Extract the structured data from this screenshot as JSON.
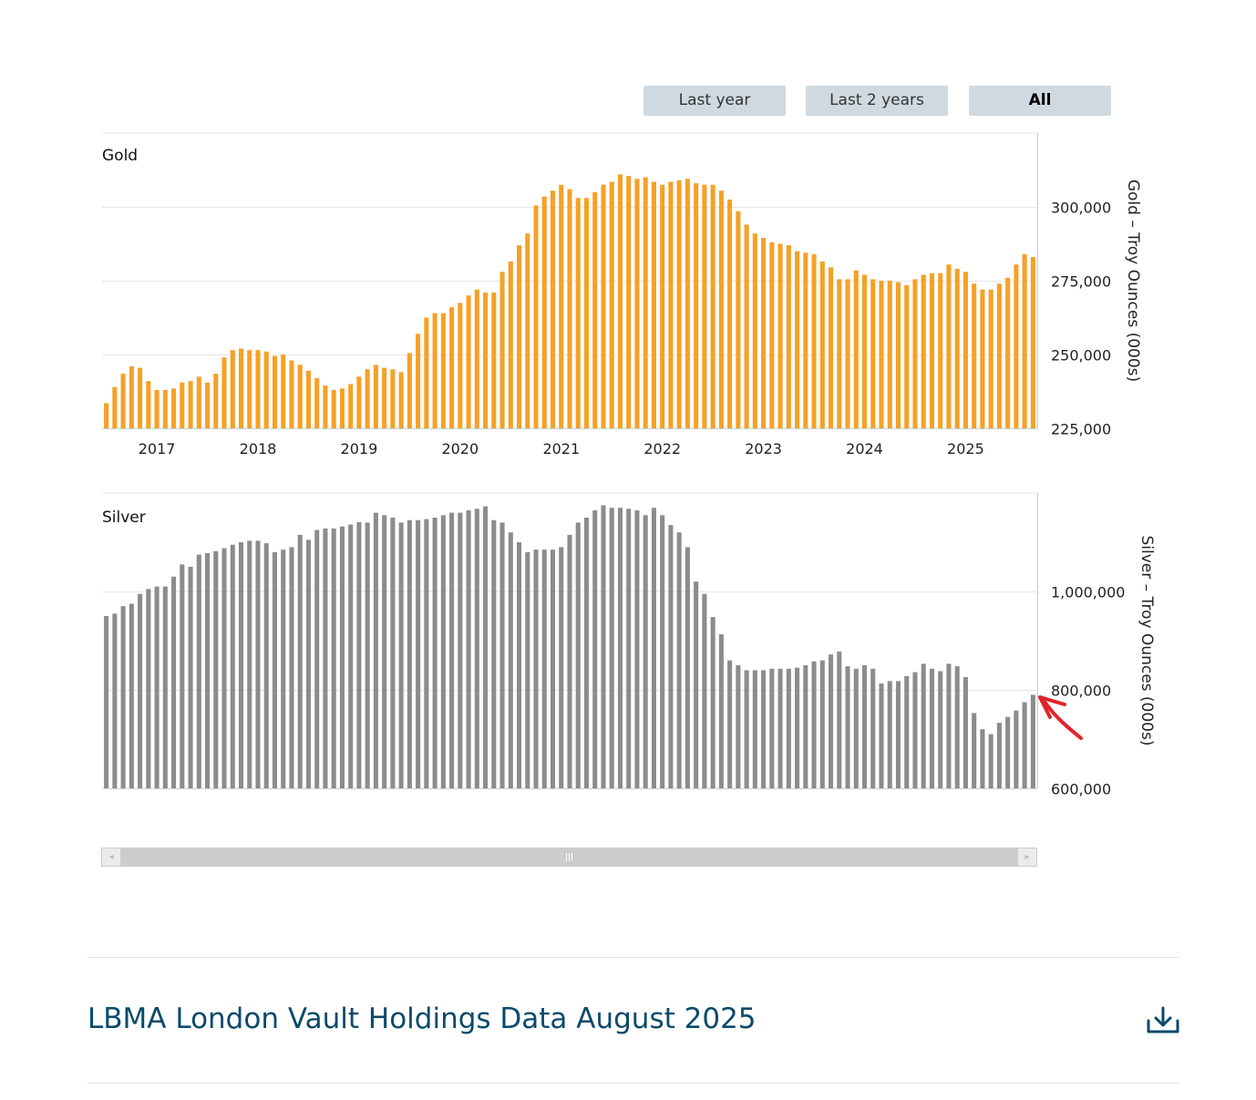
{
  "buttons": {
    "last_year": "Last year",
    "last_2_years": "Last 2 years",
    "all": "All",
    "active": "all"
  },
  "colors": {
    "gold": "#f5a127",
    "silver": "#8c8c8c",
    "annotation": "#e0242a",
    "title": "#0b4a6b"
  },
  "chart_data": [
    {
      "type": "bar",
      "title": "Gold",
      "ylabel": "Gold – Troy Ounces (000s)",
      "ylim": [
        225000,
        325000
      ],
      "yticks": [
        "300,000",
        "275,000",
        "250,000",
        "225,000"
      ],
      "ytick_values": [
        300000,
        275000,
        250000,
        225000
      ],
      "xticks": [
        "2017",
        "2018",
        "2019",
        "2020",
        "2021",
        "2022",
        "2023",
        "2024",
        "2025"
      ],
      "start": "2016-07",
      "end": "2025-08",
      "series": [
        {
          "values": [
            233500,
            239000,
            243500,
            246000,
            245500,
            241000,
            238000,
            238000,
            238500,
            240500,
            241000,
            242500,
            240500,
            243500,
            249000,
            251500,
            252000,
            251500,
            251500,
            251000,
            249500,
            250000,
            248000,
            246500,
            244500,
            242000,
            239500,
            238000,
            238500,
            240000,
            242500,
            245000,
            246500,
            245500,
            245000,
            244000,
            250500,
            257000,
            262500,
            264000,
            264000,
            266000,
            267500,
            270000,
            272000,
            271000,
            271000,
            278000,
            281500,
            287000,
            291000,
            300500,
            303500,
            305500,
            307500,
            306000,
            303000,
            303000,
            305000,
            307500,
            308500,
            311000,
            310500,
            309500,
            310000,
            308500,
            307500,
            308500,
            309000,
            309500,
            308000,
            307500,
            307500,
            305500,
            302500,
            298500,
            294000,
            291000,
            289500,
            288000,
            287500,
            287000,
            285000,
            284500,
            284000,
            281500,
            279500,
            275500,
            275500,
            278500,
            277000,
            275500,
            275000,
            275000,
            274500,
            273500,
            275500,
            277000,
            277500,
            277500,
            280500,
            279000,
            278000,
            274000,
            272000,
            272000,
            274000,
            276000,
            280500,
            284000,
            283000
          ]
        }
      ]
    },
    {
      "type": "bar",
      "title": "Silver",
      "ylabel": "Silver – Troy Ounces (000s)",
      "ylim": [
        600000,
        1200000
      ],
      "yticks": [
        "1,000,000",
        "800,000",
        "600,000"
      ],
      "ytick_values": [
        1000000,
        800000,
        600000
      ],
      "start": "2016-07",
      "end": "2025-08",
      "series": [
        {
          "values": [
            950000,
            955000,
            970000,
            975000,
            995000,
            1005000,
            1010000,
            1010000,
            1030000,
            1055000,
            1050000,
            1075000,
            1078000,
            1082000,
            1088000,
            1095000,
            1100000,
            1103000,
            1103000,
            1098000,
            1080000,
            1085000,
            1090000,
            1115000,
            1105000,
            1125000,
            1128000,
            1128000,
            1132000,
            1136000,
            1141000,
            1140000,
            1160000,
            1155000,
            1150000,
            1140000,
            1145000,
            1145000,
            1147000,
            1150000,
            1155000,
            1160000,
            1160000,
            1165000,
            1168000,
            1173000,
            1145000,
            1140000,
            1120000,
            1100000,
            1080000,
            1085000,
            1085000,
            1085000,
            1090000,
            1115000,
            1140000,
            1150000,
            1165000,
            1175000,
            1170000,
            1170000,
            1168000,
            1165000,
            1155000,
            1170000,
            1155000,
            1135000,
            1120000,
            1090000,
            1020000,
            995000,
            948000,
            913000,
            860000,
            850000,
            840000,
            840000,
            840000,
            843000,
            843000,
            843000,
            845000,
            850000,
            858000,
            860000,
            872000,
            878000,
            848000,
            843000,
            850000,
            843000,
            813000,
            818000,
            818000,
            828000,
            836000,
            853000,
            843000,
            838000,
            853000,
            848000,
            826000,
            753000,
            720000,
            710000,
            733000,
            745000,
            758000,
            775000,
            790000
          ]
        }
      ]
    }
  ],
  "report": {
    "title": "LBMA London Vault Holdings Data August 2025",
    "download_icon": "download-icon"
  }
}
